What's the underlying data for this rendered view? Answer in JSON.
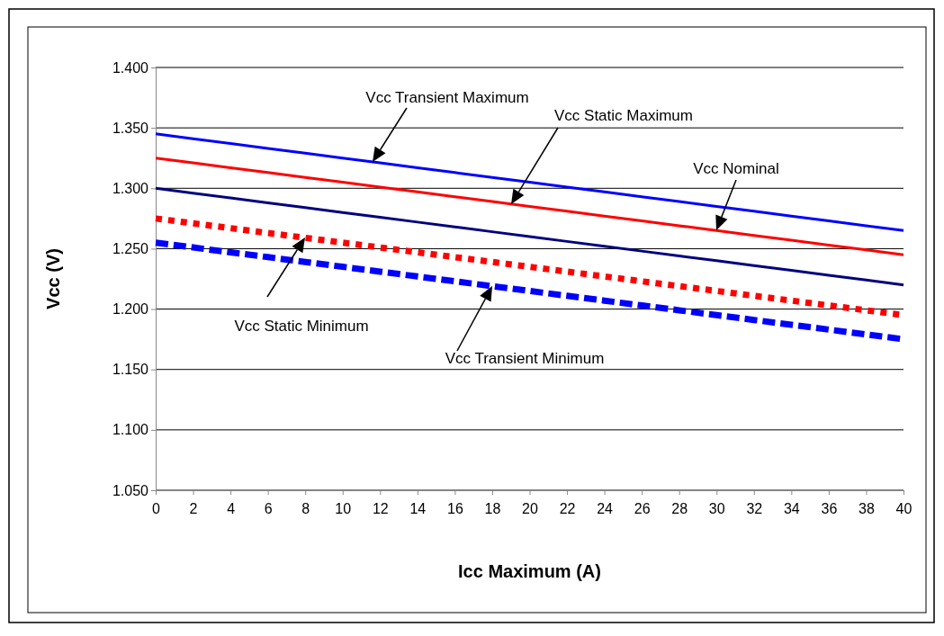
{
  "chart_data": {
    "type": "line",
    "xlabel": "Icc Maximum (A)",
    "ylabel": "Vcc (V)",
    "x": [
      0,
      2,
      4,
      6,
      8,
      10,
      12,
      14,
      16,
      18,
      20,
      22,
      24,
      26,
      28,
      30,
      32,
      34,
      36,
      38,
      40
    ],
    "series": [
      {
        "color": "#0000ff",
        "line_style": "solid",
        "values": [
          1.345,
          1.341,
          1.337,
          1.333,
          1.329,
          1.325,
          1.321,
          1.317,
          1.313,
          1.309,
          1.305,
          1.301,
          1.297,
          1.293,
          1.289,
          1.285,
          1.281,
          1.277,
          1.273,
          1.269,
          1.265
        ]
      },
      {
        "color": "#ff0000",
        "line_style": "solid",
        "values": [
          1.325,
          1.321,
          1.317,
          1.313,
          1.309,
          1.305,
          1.301,
          1.297,
          1.293,
          1.289,
          1.285,
          1.281,
          1.277,
          1.273,
          1.269,
          1.265,
          1.261,
          1.257,
          1.253,
          1.249,
          1.245
        ]
      },
      {
        "color": "#000080",
        "line_style": "solid",
        "values": [
          1.3,
          1.296,
          1.292,
          1.288,
          1.284,
          1.28,
          1.276,
          1.272,
          1.268,
          1.264,
          1.26,
          1.256,
          1.252,
          1.248,
          1.244,
          1.24,
          1.236,
          1.232,
          1.228,
          1.224,
          1.22
        ]
      },
      {
        "color": "#ff0000",
        "line_style": "dotted",
        "values": [
          1.275,
          1.271,
          1.267,
          1.263,
          1.259,
          1.255,
          1.251,
          1.247,
          1.243,
          1.239,
          1.235,
          1.231,
          1.227,
          1.223,
          1.219,
          1.215,
          1.211,
          1.207,
          1.203,
          1.199,
          1.195
        ]
      },
      {
        "color": "#0000ff",
        "line_style": "dashed",
        "values": [
          1.255,
          1.251,
          1.247,
          1.243,
          1.239,
          1.235,
          1.231,
          1.227,
          1.223,
          1.219,
          1.215,
          1.211,
          1.207,
          1.203,
          1.199,
          1.195,
          1.191,
          1.187,
          1.183,
          1.179,
          1.175
        ]
      }
    ],
    "annotations": [
      "Vcc Transient Maximum",
      "Vcc Static Maximum",
      "Vcc Nominal",
      "Vcc Static Minimum",
      "Vcc Transient Minimum"
    ],
    "xlim": [
      0,
      40
    ],
    "xticks": [
      0,
      2,
      4,
      6,
      8,
      10,
      12,
      14,
      16,
      18,
      20,
      22,
      24,
      26,
      28,
      30,
      32,
      34,
      36,
      38,
      40
    ],
    "ylim": [
      1.05,
      1.4
    ],
    "yticks": [
      {
        "value": 1.05,
        "label": "1.050"
      },
      {
        "value": 1.1,
        "label": "1.100"
      },
      {
        "value": 1.15,
        "label": "1.150"
      },
      {
        "value": 1.2,
        "label": "1.200"
      },
      {
        "value": 1.25,
        "label": "1.250"
      },
      {
        "value": 1.3,
        "label": "1.300"
      },
      {
        "value": 1.35,
        "label": "1.350"
      },
      {
        "value": 1.4,
        "label": "1.400"
      }
    ],
    "grid": "y",
    "marker": "none"
  }
}
